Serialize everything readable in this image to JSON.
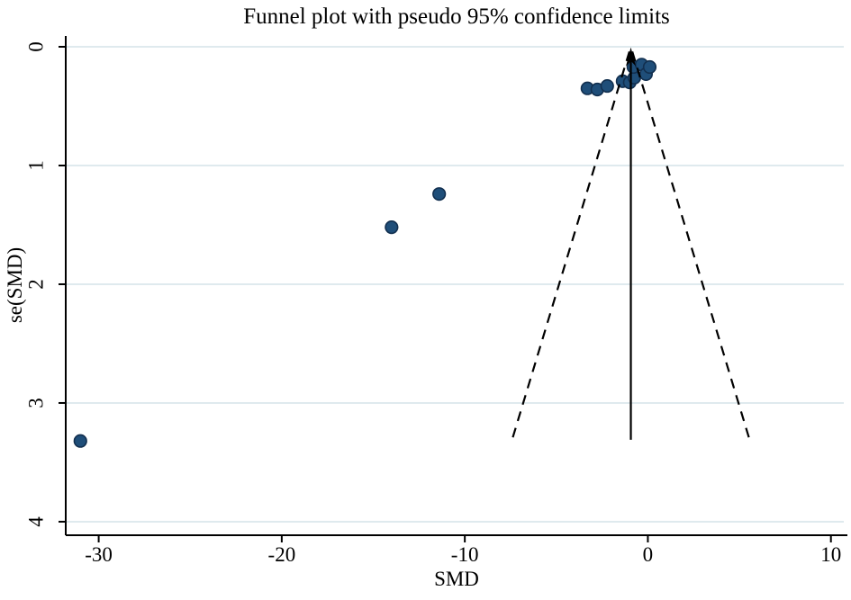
{
  "title": "Funnel plot with pseudo 95% confidence limits",
  "chart_data": {
    "type": "scatter",
    "subtype": "funnel-plot-meta-analysis",
    "title": "Funnel plot with pseudo 95% confidence limits",
    "xlabel": "SMD",
    "ylabel": "se(SMD)",
    "xlim": [
      -31.8,
      10.9
    ],
    "ylim": [
      -0.091,
      4.114
    ],
    "y_axis_reversed": true,
    "x_ticks": [
      -30,
      -20,
      -10,
      0,
      10
    ],
    "y_ticks": [
      0,
      1,
      2,
      3,
      4
    ],
    "grid": "horizontal",
    "legend": "none",
    "points": [
      {
        "smd": -31.0,
        "se": 3.32
      },
      {
        "smd": -14.0,
        "se": 1.52
      },
      {
        "smd": -11.4,
        "se": 1.24
      },
      {
        "smd": -3.3,
        "se": 0.35
      },
      {
        "smd": -2.76,
        "se": 0.36
      },
      {
        "smd": -2.22,
        "se": 0.33
      },
      {
        "smd": -1.38,
        "se": 0.29
      },
      {
        "smd": -0.99,
        "se": 0.3
      },
      {
        "smd": -0.74,
        "se": 0.26
      },
      {
        "smd": -0.79,
        "se": 0.17
      },
      {
        "smd": -0.34,
        "se": 0.15
      },
      {
        "smd": -0.1,
        "se": 0.23
      },
      {
        "smd": 0.1,
        "se": 0.17
      }
    ],
    "pooled_effect_smd": -0.93,
    "pseudo_ci": {
      "z": 1.96,
      "se_min": 0.04,
      "se_max": 3.31
    },
    "colors": {
      "marker_fill": "#1f4e79",
      "marker_stroke": "#122f4f",
      "gridline": "#dfeaee",
      "axis": "#000000",
      "ci_line": "#000000",
      "background": "#ffffff"
    }
  }
}
